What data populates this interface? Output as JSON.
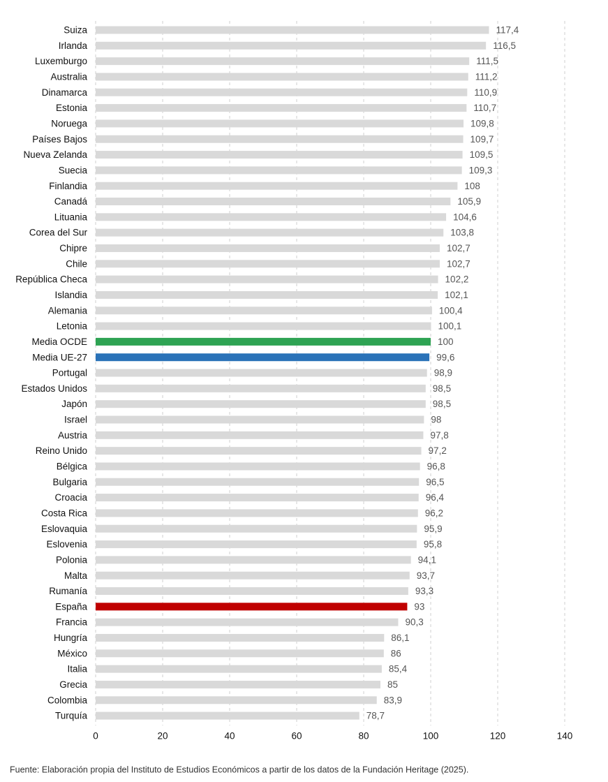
{
  "chart_data": {
    "type": "bar",
    "orientation": "horizontal",
    "categories": [
      "Suiza",
      "Irlanda",
      "Luxemburgo",
      "Australia",
      "Dinamarca",
      "Estonia",
      "Noruega",
      "Países Bajos",
      "Nueva Zelanda",
      "Suecia",
      "Finlandia",
      "Canadá",
      "Lituania",
      "Corea del Sur",
      "Chipre",
      "Chile",
      "República Checa",
      "Islandia",
      "Alemania",
      "Letonia",
      "Media OCDE",
      "Media UE-27",
      "Portugal",
      "Estados Unidos",
      "Japón",
      "Israel",
      "Austria",
      "Reino Unido",
      "Bélgica",
      "Bulgaria",
      "Croacia",
      "Costa Rica",
      "Eslovaquia",
      "Eslovenia",
      "Polonia",
      "Malta",
      "Rumanía",
      "España",
      "Francia",
      "Hungría",
      "México",
      "Italia",
      "Grecia",
      "Colombia",
      "Turquía"
    ],
    "values": [
      117.4,
      116.5,
      111.5,
      111.2,
      110.9,
      110.7,
      109.8,
      109.7,
      109.5,
      109.3,
      108,
      105.9,
      104.6,
      103.8,
      102.7,
      102.7,
      102.2,
      102.1,
      100.4,
      100.1,
      100,
      99.6,
      98.9,
      98.5,
      98.5,
      98,
      97.8,
      97.2,
      96.8,
      96.5,
      96.4,
      96.2,
      95.9,
      95.8,
      94.1,
      93.7,
      93.3,
      93,
      90.3,
      86.1,
      86,
      85.4,
      85,
      83.9,
      78.7
    ],
    "value_labels": [
      "117,4",
      "116,5",
      "111,5",
      "111,2",
      "110,9",
      "110,7",
      "109,8",
      "109,7",
      "109,5",
      "109,3",
      "108",
      "105,9",
      "104,6",
      "103,8",
      "102,7",
      "102,7",
      "102,2",
      "102,1",
      "100,4",
      "100,1",
      "100",
      "99,6",
      "98,9",
      "98,5",
      "98,5",
      "98",
      "97,8",
      "97,2",
      "96,8",
      "96,5",
      "96,4",
      "96,2",
      "95,9",
      "95,8",
      "94,1",
      "93,7",
      "93,3",
      "93",
      "90,3",
      "86,1",
      "86",
      "85,4",
      "85",
      "83,9",
      "78,7"
    ],
    "colors": [
      "#d9d9d9",
      "#d9d9d9",
      "#d9d9d9",
      "#d9d9d9",
      "#d9d9d9",
      "#d9d9d9",
      "#d9d9d9",
      "#d9d9d9",
      "#d9d9d9",
      "#d9d9d9",
      "#d9d9d9",
      "#d9d9d9",
      "#d9d9d9",
      "#d9d9d9",
      "#d9d9d9",
      "#d9d9d9",
      "#d9d9d9",
      "#d9d9d9",
      "#d9d9d9",
      "#d9d9d9",
      "#2ea353",
      "#2a72b8",
      "#d9d9d9",
      "#d9d9d9",
      "#d9d9d9",
      "#d9d9d9",
      "#d9d9d9",
      "#d9d9d9",
      "#d9d9d9",
      "#d9d9d9",
      "#d9d9d9",
      "#d9d9d9",
      "#d9d9d9",
      "#d9d9d9",
      "#d9d9d9",
      "#d9d9d9",
      "#d9d9d9",
      "#c00000",
      "#d9d9d9",
      "#d9d9d9",
      "#d9d9d9",
      "#d9d9d9",
      "#d9d9d9",
      "#d9d9d9",
      "#d9d9d9"
    ],
    "xlim": [
      0,
      140
    ],
    "xticks": [
      0,
      20,
      40,
      60,
      80,
      100,
      120,
      140
    ],
    "grid": true,
    "source": "Fuente: Elaboración propia del Instituto de Estudios Económicos a partir de los datos de la Fundación Heritage (2025)."
  }
}
